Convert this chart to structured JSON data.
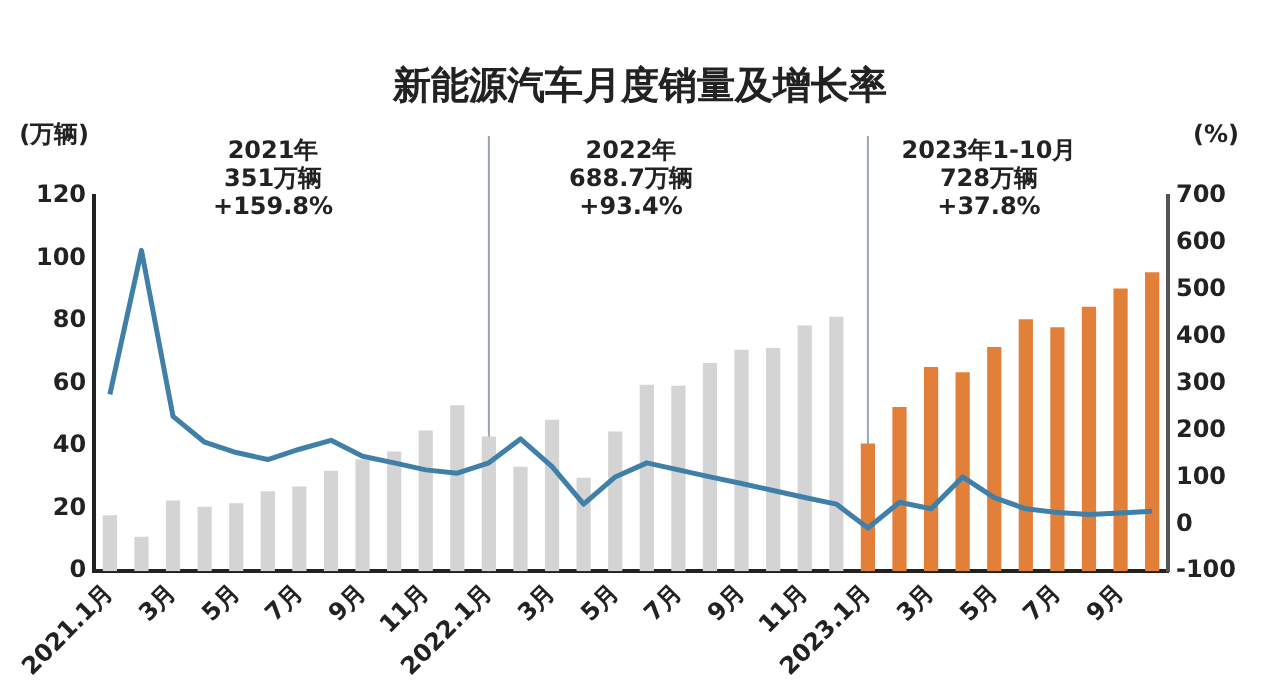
{
  "chart_data": {
    "type": "bar",
    "title": "新能源汽车月度销量及增长率",
    "ylabel": "(万辆)",
    "y2label": "(%)",
    "categories": [
      "2021.1月",
      null,
      "3月",
      null,
      "5月",
      null,
      "7月",
      null,
      "9月",
      null,
      "11月",
      null,
      "2022.1月",
      null,
      "3月",
      null,
      "5月",
      null,
      "7月",
      null,
      "9月",
      null,
      "11月",
      null,
      "2023.1月",
      null,
      "3月",
      null,
      "5月",
      null,
      "7月",
      null,
      "9月",
      null
    ],
    "series": [
      {
        "values": [
          17.9,
          11,
          22.6,
          20.6,
          21.7,
          25.6,
          27.1,
          32.1,
          35.7,
          38.3,
          45,
          53.1,
          43.1,
          33.4,
          48.4,
          29.9,
          44.7,
          59.6,
          59.3,
          66.6,
          70.8,
          71.4,
          78.6,
          81.4,
          40.8,
          52.5,
          65.3,
          63.6,
          71.7,
          80.6,
          78,
          84.6,
          90.4,
          95.6
        ],
        "colors": [
          "#d4d4d4",
          "#d4d4d4",
          "#d4d4d4",
          "#d4d4d4",
          "#d4d4d4",
          "#d4d4d4",
          "#d4d4d4",
          "#d4d4d4",
          "#d4d4d4",
          "#d4d4d4",
          "#d4d4d4",
          "#d4d4d4",
          "#d4d4d4",
          "#d4d4d4",
          "#d4d4d4",
          "#d4d4d4",
          "#d4d4d4",
          "#d4d4d4",
          "#d4d4d4",
          "#d4d4d4",
          "#d4d4d4",
          "#d4d4d4",
          "#d4d4d4",
          "#d4d4d4",
          "#e2803a",
          "#e2803a",
          "#e2803a",
          "#e2803a",
          "#e2803a",
          "#e2803a",
          "#e2803a",
          "#e2803a",
          "#e2803a",
          "#e2803a"
        ]
      },
      {
        "type": "line",
        "axis": "y2",
        "color": "#3f7fa8",
        "values": [
          277,
          584,
          230,
          175,
          153,
          138,
          160,
          179,
          145,
          131,
          116,
          109,
          131,
          182,
          123,
          43,
          101,
          131,
          116,
          101,
          87,
          72,
          57,
          43,
          -8,
          47,
          33,
          101,
          57,
          33,
          25,
          21,
          24,
          28
        ]
      }
    ],
    "ylim": [
      0,
      120
    ],
    "yticks": [
      0,
      20,
      40,
      60,
      80,
      100,
      120
    ],
    "y2lim": [
      -100,
      700
    ],
    "y2ticks": [
      -100,
      0,
      100,
      200,
      300,
      400,
      500,
      600,
      700
    ],
    "grid": false,
    "legend": false,
    "marker": "none",
    "ref_lines": [
      {
        "axis": "x",
        "value": "2022.1月",
        "color": "#9aa5b1"
      },
      {
        "axis": "x",
        "value": "2023.1月",
        "color": "#9aa5b1"
      }
    ],
    "annotations": [
      "2021年\n351万辆\n+159.8%",
      "2022年\n688.7万辆\n+93.4%",
      "2023年1-10月\n728万辆\n+37.8%"
    ]
  }
}
